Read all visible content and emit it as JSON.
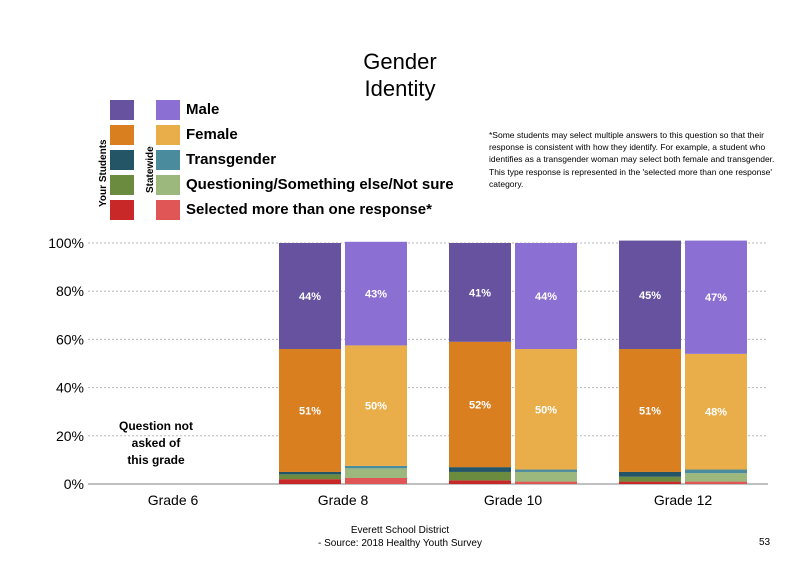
{
  "title_line1": "Gender",
  "title_line2": "Identity",
  "legend": {
    "your_students_label": "Your Students",
    "statewide_label": "Statewide",
    "items": [
      {
        "label": "Male",
        "your_color": "#66529e",
        "state_color": "#8c6fd2"
      },
      {
        "label": "Female",
        "your_color": "#d97f1f",
        "state_color": "#e9ae4a"
      },
      {
        "label": "Transgender",
        "your_color": "#245566",
        "state_color": "#4a8b9e"
      },
      {
        "label": "Questioning/Something else/Not sure",
        "your_color": "#6b8c3e",
        "state_color": "#9db87d"
      },
      {
        "label": "Selected more than one response*",
        "your_color": "#c82828",
        "state_color": "#e05656"
      }
    ]
  },
  "note": "*Some students may select multiple answers to this question so that their response is consistent with how they identify. For example, a student who identifies as a transgender woman may select both female and transgender. This type response is represented in the 'selected more than one response' category.",
  "footer_line1": "Everett School District",
  "footer_line2": "- Source: 2018 Healthy  Youth Survey",
  "page_number": "53",
  "chart_data": {
    "type": "bar",
    "stacked": true,
    "categories": [
      "Grade 6",
      "Grade 8",
      "Grade 10",
      "Grade 12"
    ],
    "y_ticks": [
      "0%",
      "20%",
      "40%",
      "60%",
      "80%",
      "100%"
    ],
    "ylim": [
      0,
      100
    ],
    "grid": "horizontal-dotted",
    "no_data_note": [
      "Question not",
      "asked of",
      "this grade"
    ],
    "no_data_category": "Grade 6",
    "groups": [
      {
        "category": "Grade 8",
        "bars": [
          {
            "source": "Your Students",
            "segments": [
              2,
              2,
              1,
              51,
              44
            ],
            "labels": [
              "",
              "",
              "",
              "51%",
              "44%"
            ]
          },
          {
            "source": "Statewide",
            "segments": [
              2.5,
              4,
              1,
              50,
              43
            ],
            "labels": [
              "",
              "",
              "",
              "50%",
              "43%"
            ]
          }
        ]
      },
      {
        "category": "Grade 10",
        "bars": [
          {
            "source": "Your Students",
            "segments": [
              1.5,
              3.5,
              2,
              52,
              41
            ],
            "labels": [
              "",
              "",
              "",
              "52%",
              "41%"
            ]
          },
          {
            "source": "Statewide",
            "segments": [
              1,
              4,
              1,
              50,
              44
            ],
            "labels": [
              "",
              "",
              "",
              "50%",
              "44%"
            ]
          }
        ]
      },
      {
        "category": "Grade 12",
        "bars": [
          {
            "source": "Your Students",
            "segments": [
              1,
              2,
              2,
              51,
              45
            ],
            "labels": [
              "",
              "",
              "",
              "51%",
              "45%"
            ]
          },
          {
            "source": "Statewide",
            "segments": [
              1,
              3.5,
              1.5,
              48,
              47
            ],
            "labels": [
              "",
              "",
              "",
              "48%",
              "47%"
            ]
          }
        ]
      }
    ],
    "segment_order": [
      "Selected more than one response*",
      "Questioning/Something else/Not sure",
      "Transgender",
      "Female",
      "Male"
    ]
  }
}
